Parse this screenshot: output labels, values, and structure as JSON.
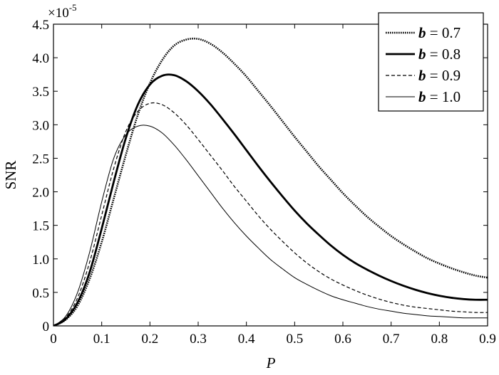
{
  "chart_data": {
    "type": "line",
    "title": "",
    "xlabel": "P",
    "ylabel": "SNR",
    "y_exponent_label": "×10",
    "y_exponent_power": "-5",
    "xlim": [
      0,
      0.9
    ],
    "ylim": [
      0,
      4.5
    ],
    "x_ticks": [
      "0",
      "0.1",
      "0.2",
      "0.3",
      "0.4",
      "0.5",
      "0.6",
      "0.7",
      "0.8",
      "0.9"
    ],
    "y_ticks": [
      "0",
      "0.5",
      "1.0",
      "1.5",
      "2.0",
      "2.5",
      "3.0",
      "3.5",
      "4.0",
      "4.5"
    ],
    "grid": false,
    "legend_position": "top-right",
    "x": [
      0,
      0.025,
      0.05,
      0.075,
      0.1,
      0.125,
      0.15,
      0.175,
      0.2,
      0.225,
      0.25,
      0.275,
      0.3,
      0.325,
      0.35,
      0.375,
      0.4,
      0.425,
      0.45,
      0.475,
      0.5,
      0.525,
      0.55,
      0.575,
      0.6,
      0.625,
      0.65,
      0.675,
      0.7,
      0.725,
      0.75,
      0.775,
      0.8,
      0.825,
      0.85,
      0.875,
      0.9
    ],
    "series": [
      {
        "name_var": "b",
        "name_rest": " = 0.7",
        "style": "dotted-thick",
        "values": [
          0,
          0.09,
          0.3,
          0.7,
          1.25,
          1.9,
          2.55,
          3.15,
          3.62,
          3.96,
          4.18,
          4.27,
          4.28,
          4.21,
          4.08,
          3.91,
          3.72,
          3.5,
          3.28,
          3.05,
          2.82,
          2.6,
          2.38,
          2.18,
          1.98,
          1.8,
          1.63,
          1.48,
          1.34,
          1.22,
          1.11,
          1.01,
          0.93,
          0.86,
          0.8,
          0.75,
          0.72
        ]
      },
      {
        "name_var": "b",
        "name_rest": " = 0.8",
        "style": "solid-thick",
        "values": [
          0,
          0.1,
          0.35,
          0.8,
          1.45,
          2.15,
          2.8,
          3.3,
          3.6,
          3.73,
          3.74,
          3.65,
          3.5,
          3.31,
          3.09,
          2.86,
          2.62,
          2.38,
          2.15,
          1.93,
          1.72,
          1.53,
          1.36,
          1.2,
          1.06,
          0.94,
          0.84,
          0.75,
          0.67,
          0.6,
          0.54,
          0.49,
          0.45,
          0.42,
          0.4,
          0.39,
          0.39
        ]
      },
      {
        "name_var": "b",
        "name_rest": " = 0.9",
        "style": "dashed",
        "values": [
          0,
          0.12,
          0.42,
          0.95,
          1.65,
          2.35,
          2.9,
          3.2,
          3.32,
          3.3,
          3.18,
          3.0,
          2.78,
          2.55,
          2.32,
          2.08,
          1.86,
          1.64,
          1.44,
          1.26,
          1.09,
          0.94,
          0.81,
          0.7,
          0.61,
          0.53,
          0.46,
          0.4,
          0.35,
          0.31,
          0.28,
          0.26,
          0.24,
          0.22,
          0.21,
          0.2,
          0.2
        ]
      },
      {
        "name_var": "b",
        "name_rest": " = 1.0",
        "style": "solid-thin",
        "values": [
          0,
          0.14,
          0.5,
          1.1,
          1.85,
          2.5,
          2.85,
          2.98,
          2.98,
          2.88,
          2.7,
          2.48,
          2.24,
          2.0,
          1.76,
          1.54,
          1.34,
          1.16,
          0.99,
          0.85,
          0.72,
          0.62,
          0.53,
          0.45,
          0.39,
          0.34,
          0.29,
          0.25,
          0.22,
          0.19,
          0.17,
          0.15,
          0.14,
          0.13,
          0.12,
          0.12,
          0.12
        ]
      }
    ]
  }
}
